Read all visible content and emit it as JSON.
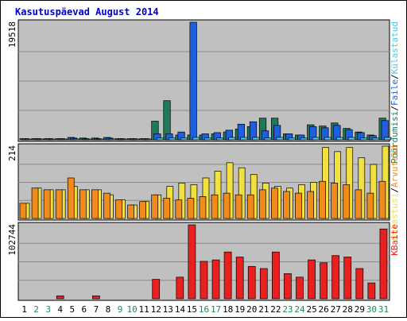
{
  "title": "Kasutuspäevad August 2014",
  "colors": {
    "title": "#0000cc",
    "plot_bg": "#c0c0c0",
    "grid": "#8c8c8c",
    "pages": "#1f7a5a",
    "files": "#1e5fe0",
    "hits": "#49c9e6",
    "visits": "#f0e040",
    "visitors": "#f08b1c",
    "bytes": "#e82020",
    "weekday_label": "#000000",
    "weekend_label": "#1f8a50"
  },
  "chart_data": [
    {
      "type": "bar",
      "title": "Kasutuspäevad August 2014",
      "ymax_label": "19518",
      "ylim": [
        0,
        19518
      ],
      "right_labels": [
        {
          "text": "Pöördumisi",
          "color": "#1f7a5a"
        },
        {
          "text": "/",
          "color": "#000000"
        },
        {
          "text": "Faile",
          "color": "#1e5fe0"
        },
        {
          "text": "/",
          "color": "#000000"
        },
        {
          "text": "Külastatud",
          "color": "#49c9e6"
        }
      ],
      "categories": [
        "1",
        "2",
        "3",
        "4",
        "5",
        "6",
        "7",
        "8",
        "9",
        "10",
        "11",
        "12",
        "13",
        "14",
        "15",
        "16",
        "17",
        "18",
        "19",
        "20",
        "21",
        "22",
        "23",
        "24",
        "25",
        "26",
        "27",
        "28",
        "29",
        "30",
        "31"
      ],
      "weekend_days": [
        "2",
        "3",
        "9",
        "10",
        "16",
        "17",
        "23",
        "24",
        "30",
        "31"
      ],
      "series": [
        {
          "name": "Pöördumisi",
          "color": "#1f7a5a",
          "values": [
            200,
            200,
            200,
            200,
            400,
            300,
            300,
            400,
            200,
            200,
            200,
            3100,
            6500,
            800,
            800,
            800,
            1000,
            1300,
            1800,
            2200,
            3600,
            3600,
            1000,
            800,
            2500,
            2300,
            2800,
            1900,
            1300,
            800,
            3600
          ]
        },
        {
          "name": "Faile",
          "color": "#1e5fe0",
          "values": [
            200,
            200,
            200,
            200,
            300,
            200,
            200,
            300,
            200,
            200,
            200,
            1000,
            1000,
            1300,
            19518,
            1000,
            1200,
            1600,
            2600,
            3000,
            1500,
            2400,
            1000,
            800,
            2200,
            2000,
            2400,
            1700,
            1200,
            700,
            3200
          ]
        },
        {
          "name": "Külastatud",
          "color": "#49c9e6",
          "values": [
            100,
            100,
            100,
            100,
            150,
            100,
            100,
            150,
            100,
            100,
            100,
            300,
            300,
            300,
            400,
            300,
            300,
            400,
            400,
            400,
            300,
            400,
            300,
            300,
            400,
            400,
            400,
            400,
            300,
            300,
            400
          ]
        }
      ]
    },
    {
      "type": "bar",
      "ymax_label": "214",
      "ylim": [
        0,
        214
      ],
      "right_labels": [
        {
          "text": "Külastusi",
          "color": "#f0e040"
        },
        {
          "text": "/",
          "color": "#000000"
        },
        {
          "text": "Arvuteid",
          "color": "#f08b1c"
        }
      ],
      "categories": [
        "1",
        "2",
        "3",
        "4",
        "5",
        "6",
        "7",
        "8",
        "9",
        "10",
        "11",
        "12",
        "13",
        "14",
        "15",
        "16",
        "17",
        "18",
        "19",
        "20",
        "21",
        "22",
        "23",
        "24",
        "25",
        "26",
        "27",
        "28",
        "29",
        "30",
        "31"
      ],
      "series": [
        {
          "name": "Külastusi",
          "color": "#f0e040",
          "values": [
            45,
            90,
            85,
            85,
            95,
            85,
            85,
            70,
            55,
            40,
            50,
            70,
            95,
            105,
            100,
            120,
            140,
            165,
            150,
            130,
            105,
            95,
            90,
            100,
            107,
            210,
            198,
            210,
            180,
            160,
            214
          ]
        },
        {
          "name": "Arvuteid",
          "color": "#f08b1c",
          "values": [
            45,
            90,
            85,
            85,
            120,
            85,
            85,
            75,
            55,
            40,
            50,
            70,
            60,
            55,
            60,
            65,
            70,
            75,
            70,
            70,
            85,
            90,
            80,
            75,
            80,
            110,
            105,
            100,
            85,
            75,
            110
          ]
        }
      ]
    },
    {
      "type": "bar",
      "ymax_label": "102744",
      "ylim": [
        0,
        102744
      ],
      "right_labels": [
        {
          "text": "KBaite",
          "color": "#e82020"
        }
      ],
      "categories": [
        "1",
        "2",
        "3",
        "4",
        "5",
        "6",
        "7",
        "8",
        "9",
        "10",
        "11",
        "12",
        "13",
        "14",
        "15",
        "16",
        "17",
        "18",
        "19",
        "20",
        "21",
        "22",
        "23",
        "24",
        "25",
        "26",
        "27",
        "28",
        "29",
        "30",
        "31"
      ],
      "series": [
        {
          "name": "KBaite",
          "color": "#e82020",
          "values": [
            0,
            0,
            0,
            4000,
            0,
            0,
            4000,
            0,
            0,
            0,
            0,
            27000,
            0,
            30000,
            102744,
            52000,
            54000,
            65000,
            58000,
            45000,
            42000,
            65000,
            35000,
            30000,
            54000,
            50000,
            60000,
            58000,
            42000,
            22000,
            97000
          ]
        }
      ]
    }
  ]
}
